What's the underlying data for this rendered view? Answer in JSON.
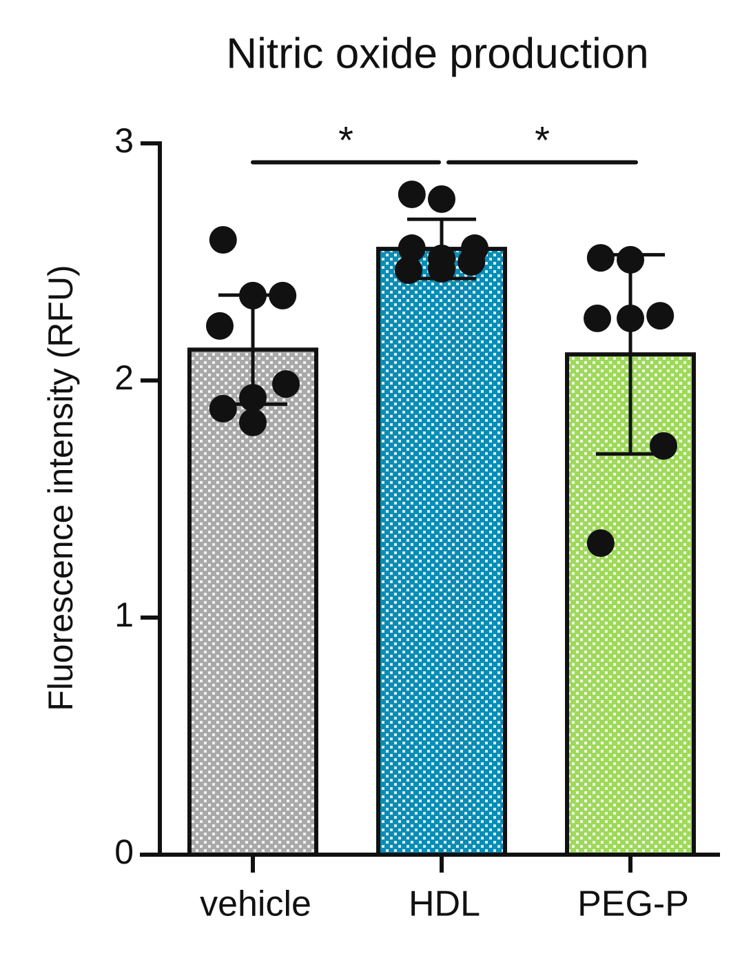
{
  "chart_data": {
    "type": "bar",
    "title": "Nitric oxide production",
    "y_label": "Fluorescence intensity (RFU)",
    "categories": [
      "vehicle",
      "HDL",
      "PEG-P"
    ],
    "values": [
      2.13,
      2.555,
      2.11
    ],
    "errors": [
      0.23,
      0.125,
      0.42
    ],
    "colors": [
      "#a9a9a9",
      "#0a8db5",
      "#9fd95c"
    ],
    "points": [
      [
        2.593,
        2.358,
        2.358,
        2.23,
        1.927,
        1.985,
        1.881,
        1.823
      ],
      [
        2.785,
        2.765,
        2.5,
        2.465,
        2.471,
        2.558,
        2.558,
        2.515
      ],
      [
        2.517,
        2.509,
        2.273,
        2.262,
        2.262,
        1.724,
        1.314
      ]
    ],
    "ylim": [
      0,
      3
    ],
    "yticks": [
      0,
      1,
      2,
      3
    ],
    "annotations": [
      {
        "text": "*",
        "from": "vehicle",
        "to": "HDL",
        "y": 2.92
      },
      {
        "text": "*",
        "from": "HDL",
        "to": "PEG-P",
        "y": 2.92
      }
    ]
  }
}
